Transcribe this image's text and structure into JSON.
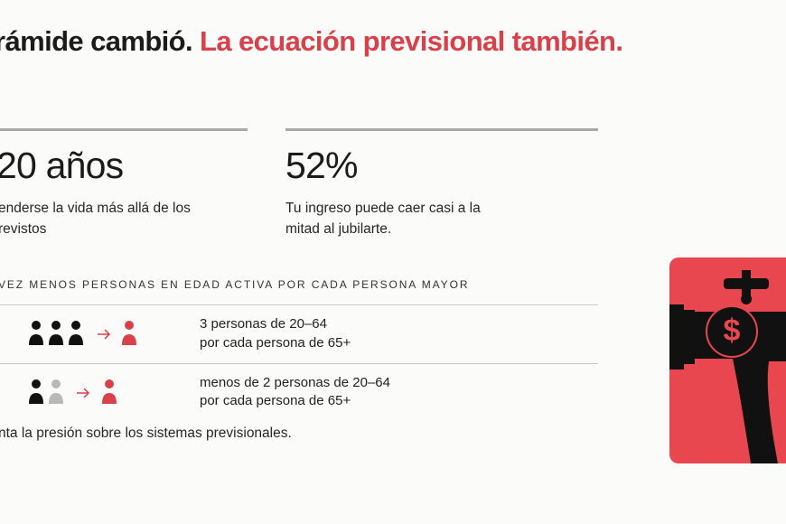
{
  "header": {
    "title_black": "rámide cambió.",
    "title_red": "La ecuación previsional también."
  },
  "stats": [
    {
      "value": "20 años",
      "lines": [
        "enderse la vida más allá de los",
        "revistos"
      ]
    },
    {
      "value": "52%",
      "lines": [
        "Tu ingreso puede caer casi a la",
        "mitad al jubilarte."
      ]
    }
  ],
  "section": {
    "heading": "VEZ MENOS PERSONAS EN EDAD ACTIVA POR CADA PERSONA MAYOR",
    "rows": [
      {
        "line1": "3 personas de 20–64",
        "line2": "por cada persona de 65+"
      },
      {
        "line1": "menos de 2 personas de 20–64",
        "line2": "por cada persona de 65+"
      }
    ],
    "footer": "nta la presión sobre los sistemas previsionales."
  },
  "illustration": {
    "symbol": "$"
  }
}
